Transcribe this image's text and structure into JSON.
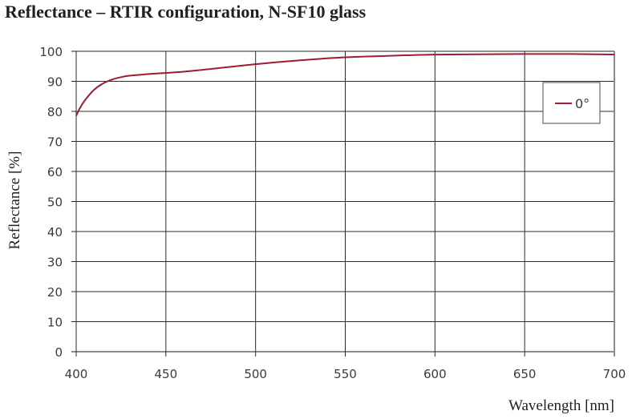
{
  "chart_data": {
    "type": "line",
    "title": "Reflectance – RTIR configuration, N-SF10 glass",
    "xlabel": "Wavelength [nm]",
    "ylabel": "Reflectance [%]",
    "xlim": [
      400,
      700
    ],
    "ylim": [
      0,
      100
    ],
    "xticks": [
      400,
      450,
      500,
      550,
      600,
      650,
      700
    ],
    "yticks": [
      0,
      10,
      20,
      30,
      40,
      50,
      60,
      70,
      80,
      90,
      100
    ],
    "grid": true,
    "legend_position": "upper right (inside)",
    "series": [
      {
        "name": "0°",
        "color": "#9e1b32",
        "x": [
          400,
          402,
          405,
          410,
          415,
          420,
          425,
          430,
          440,
          450,
          460,
          475,
          500,
          525,
          550,
          575,
          600,
          625,
          650,
          675,
          700
        ],
        "values": [
          78.5,
          81,
          83.8,
          87.2,
          89.3,
          90.6,
          91.4,
          91.9,
          92.4,
          92.8,
          93.2,
          94.1,
          95.7,
          97.0,
          98.0,
          98.5,
          98.9,
          99.0,
          99.1,
          99.1,
          98.9
        ]
      }
    ]
  },
  "title": "Reflectance – RTIR configuration, N-SF10 glass",
  "axes": {
    "xlabel": "Wavelength [nm]",
    "ylabel": "Reflectance [%]",
    "xticks": [
      "400",
      "450",
      "500",
      "550",
      "600",
      "650",
      "700"
    ],
    "yticks": [
      "0",
      "10",
      "20",
      "30",
      "40",
      "50",
      "60",
      "70",
      "80",
      "90",
      "100"
    ]
  },
  "legend": {
    "items": [
      {
        "label": "0°",
        "color": "#9e1b32"
      }
    ]
  },
  "colors": {
    "series": "#9e1b32",
    "grid": "#2b2b2b",
    "frame": "#8c8c8c"
  }
}
